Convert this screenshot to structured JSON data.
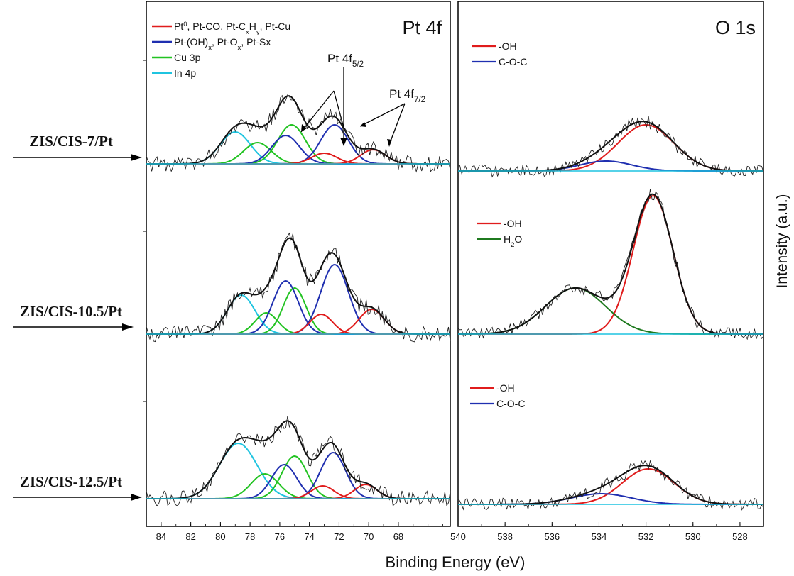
{
  "figure": {
    "xlabel": "Binding Energy (eV)",
    "ylabel": "Intensity (a.u.)"
  },
  "sample_labels": [
    "ZIS/CIS-7/Pt",
    "ZIS/CIS-10.5/Pt",
    "ZIS/CIS-12.5/Pt"
  ],
  "colors": {
    "pt0": "#e01c1c",
    "pt_ox": "#1f2fb0",
    "cu3p": "#22c322",
    "in4p": "#1fc4e0",
    "oh": "#e01c1c",
    "coc": "#1f2fb0",
    "h2o": "#1f7a1f",
    "envelope": "#111111",
    "raw": "#222222"
  },
  "chart_data": [
    {
      "type": "line",
      "panel_title": "Pt 4f",
      "xlabel": "Binding Energy (eV)",
      "x_reversed": true,
      "xlim": [
        85,
        64.5
      ],
      "xticks": [
        84,
        82,
        80,
        78,
        76,
        74,
        72,
        70,
        68
      ],
      "grid": false,
      "legend_position": "top-left",
      "legend": [
        {
          "key": "pt0",
          "parts": [
            [
              "Pt",
              ""
            ],
            [
              "0",
              "sup"
            ],
            [
              ", Pt-CO, Pt-C",
              ""
            ],
            [
              "x",
              "sub"
            ],
            [
              "H",
              ""
            ],
            [
              "y",
              "sub"
            ],
            [
              ", Pt-Cu",
              ""
            ]
          ]
        },
        {
          "key": "pt_ox",
          "parts": [
            [
              "Pt-(OH)",
              ""
            ],
            [
              "x",
              "sub"
            ],
            [
              ", Pt-O",
              ""
            ],
            [
              "x",
              "sub"
            ],
            [
              ", Pt-Sx",
              ""
            ]
          ]
        },
        {
          "key": "cu3p",
          "parts": [
            [
              "Cu 3p",
              ""
            ]
          ]
        },
        {
          "key": "in4p",
          "parts": [
            [
              "In 4p",
              ""
            ]
          ]
        }
      ],
      "annotations": [
        {
          "parts": [
            [
              "Pt 4f",
              ""
            ],
            [
              "5/2",
              "sub"
            ]
          ]
        },
        {
          "parts": [
            [
              "Pt 4f",
              ""
            ],
            [
              "7/2",
              "sub"
            ]
          ]
        }
      ],
      "samples": [
        {
          "label": "ZIS/CIS-7/Pt",
          "peaks": [
            {
              "key": "in4p",
              "center": 79.0,
              "height": 0.45,
              "fwhm": 2.4
            },
            {
              "key": "cu3p",
              "center": 77.5,
              "height": 0.3,
              "fwhm": 2.2
            },
            {
              "key": "cu3p",
              "center": 75.2,
              "height": 0.55,
              "fwhm": 2.2
            },
            {
              "key": "pt_ox",
              "center": 75.6,
              "height": 0.4,
              "fwhm": 2.2
            },
            {
              "key": "pt_ox",
              "center": 72.3,
              "height": 0.55,
              "fwhm": 2.2
            },
            {
              "key": "pt0",
              "center": 73.0,
              "height": 0.15,
              "fwhm": 2.0
            },
            {
              "key": "pt0",
              "center": 69.7,
              "height": 0.2,
              "fwhm": 2.0
            }
          ]
        },
        {
          "label": "ZIS/CIS-10.5/Pt",
          "peaks": [
            {
              "key": "in4p",
              "center": 78.6,
              "height": 0.55,
              "fwhm": 2.2
            },
            {
              "key": "cu3p",
              "center": 76.9,
              "height": 0.3,
              "fwhm": 1.8
            },
            {
              "key": "cu3p",
              "center": 75.0,
              "height": 0.65,
              "fwhm": 1.8
            },
            {
              "key": "pt_ox",
              "center": 75.6,
              "height": 0.75,
              "fwhm": 2.0
            },
            {
              "key": "pt_ox",
              "center": 72.3,
              "height": 0.98,
              "fwhm": 2.2
            },
            {
              "key": "pt0",
              "center": 73.2,
              "height": 0.28,
              "fwhm": 1.8
            },
            {
              "key": "pt0",
              "center": 69.8,
              "height": 0.35,
              "fwhm": 2.0
            }
          ]
        },
        {
          "label": "ZIS/CIS-12.5/Pt",
          "peaks": [
            {
              "key": "in4p",
              "center": 78.8,
              "height": 0.78,
              "fwhm": 3.0
            },
            {
              "key": "cu3p",
              "center": 77.0,
              "height": 0.35,
              "fwhm": 2.2
            },
            {
              "key": "cu3p",
              "center": 75.0,
              "height": 0.6,
              "fwhm": 2.0
            },
            {
              "key": "pt_ox",
              "center": 75.7,
              "height": 0.48,
              "fwhm": 2.0
            },
            {
              "key": "pt_ox",
              "center": 72.4,
              "height": 0.65,
              "fwhm": 2.0
            },
            {
              "key": "pt0",
              "center": 73.1,
              "height": 0.18,
              "fwhm": 1.8
            },
            {
              "key": "pt0",
              "center": 70.2,
              "height": 0.2,
              "fwhm": 1.8
            }
          ]
        }
      ]
    },
    {
      "type": "line",
      "panel_title": "O 1s",
      "xlabel": "Binding Energy (eV)",
      "x_reversed": true,
      "xlim": [
        540,
        527
      ],
      "xticks": [
        540,
        538,
        536,
        534,
        532,
        530,
        528
      ],
      "grid": false,
      "samples": [
        {
          "label": "ZIS/CIS-7/Pt",
          "legend": [
            {
              "key": "oh",
              "parts": [
                [
                  "-OH",
                  ""
                ]
              ]
            },
            {
              "key": "coc",
              "parts": [
                [
                  "C-O-C",
                  ""
                ]
              ]
            }
          ],
          "peaks": [
            {
              "key": "oh",
              "center": 532.0,
              "height": 0.65,
              "fwhm": 2.8
            },
            {
              "key": "coc",
              "center": 533.7,
              "height": 0.14,
              "fwhm": 2.6
            }
          ]
        },
        {
          "label": "ZIS/CIS-10.5/Pt",
          "legend": [
            {
              "key": "oh",
              "parts": [
                [
                  "-OH",
                  ""
                ]
              ]
            },
            {
              "key": "h2o",
              "parts": [
                [
                  "H",
                  ""
                ],
                [
                  "2",
                  "sub"
                ],
                [
                  "O",
                  ""
                ]
              ]
            }
          ],
          "peaks": [
            {
              "key": "oh",
              "center": 531.7,
              "height": 1.95,
              "fwhm": 2.0
            },
            {
              "key": "h2o",
              "center": 535.0,
              "height": 0.65,
              "fwhm": 3.0
            }
          ]
        },
        {
          "label": "ZIS/CIS-12.5/Pt",
          "legend": [
            {
              "key": "oh",
              "parts": [
                [
                  "-OH",
                  ""
                ]
              ]
            },
            {
              "key": "coc",
              "parts": [
                [
                  "C-O-C",
                  ""
                ]
              ]
            }
          ],
          "peaks": [
            {
              "key": "oh",
              "center": 531.9,
              "height": 0.5,
              "fwhm": 2.6
            },
            {
              "key": "coc",
              "center": 533.9,
              "height": 0.15,
              "fwhm": 3.0
            }
          ]
        }
      ]
    }
  ]
}
